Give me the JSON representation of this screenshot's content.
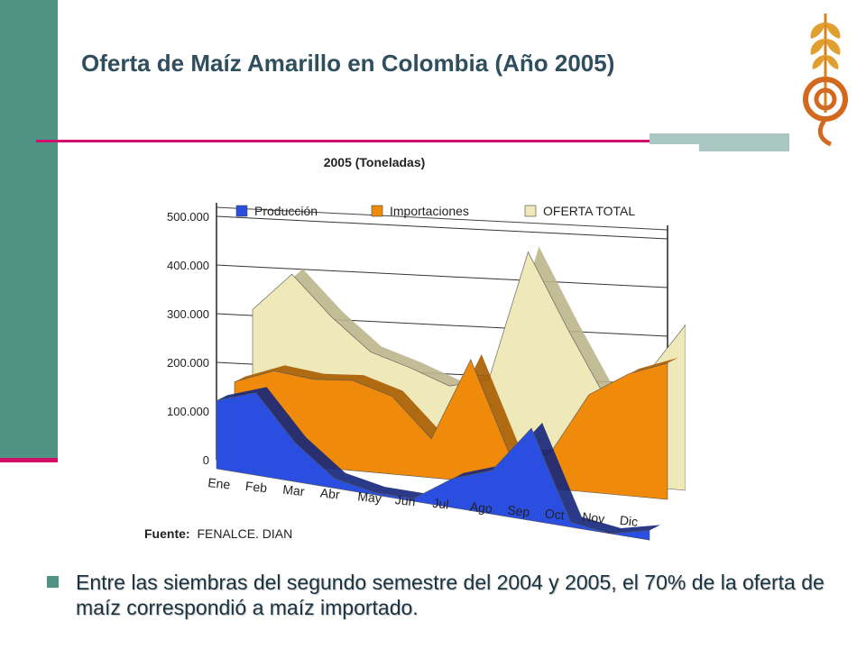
{
  "slide": {
    "title": "Oferta de Maíz Amarillo en Colombia (Año 2005)",
    "bullet": "Entre las siembras del segundo semestre del 2004 y 2005, el 70% de la oferta de maíz correspondió a maíz importado.",
    "accent_color": "#d0106a",
    "sidebar_color": "#4e9383",
    "logo_icon": "wheat-gear-logo-icon"
  },
  "chart_data": {
    "type": "area",
    "title": "2005 (Toneladas)",
    "categories": [
      "Ene",
      "Feb",
      "Mar",
      "Abr",
      "May",
      "Jun",
      "Jul",
      "Ago",
      "Sep",
      "Oct",
      "Nov",
      "Dic"
    ],
    "series": [
      {
        "name": "OFERTA TOTAL",
        "color": "#efe8b8",
        "values": [
          290000,
          370000,
          290000,
          225000,
          200000,
          170000,
          190000,
          460000,
          310000,
          170000,
          230000,
          340000
        ]
      },
      {
        "name": "Importaciones",
        "color": "#f08a0a",
        "values": [
          160000,
          190000,
          180000,
          185000,
          160000,
          80000,
          250000,
          60000,
          70000,
          200000,
          250000,
          280000
        ]
      },
      {
        "name": "Producción",
        "color": "#2a4ee0",
        "values": [
          140000,
          170000,
          80000,
          20000,
          5000,
          5000,
          60000,
          90000,
          190000,
          10000,
          -10000,
          20000
        ]
      }
    ],
    "yticks": [
      "500.000",
      "400.000",
      "300.000",
      "200.000",
      "100.000",
      "0"
    ],
    "ylim": [
      0,
      500000
    ],
    "grid": true,
    "legend_position": "top",
    "source_label": "Fuente:",
    "source_text": "FENALCE. DIAN"
  }
}
